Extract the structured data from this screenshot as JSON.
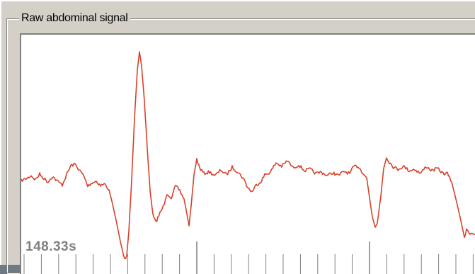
{
  "panel": {
    "title": "Raw abdominal signal"
  },
  "readout": {
    "time": "148.33s"
  },
  "colors": {
    "signal": "#d9402b",
    "ticks": "#808080",
    "background": "#ffffff",
    "frame": "#d4d0c8",
    "window": "#6f7a84"
  }
}
